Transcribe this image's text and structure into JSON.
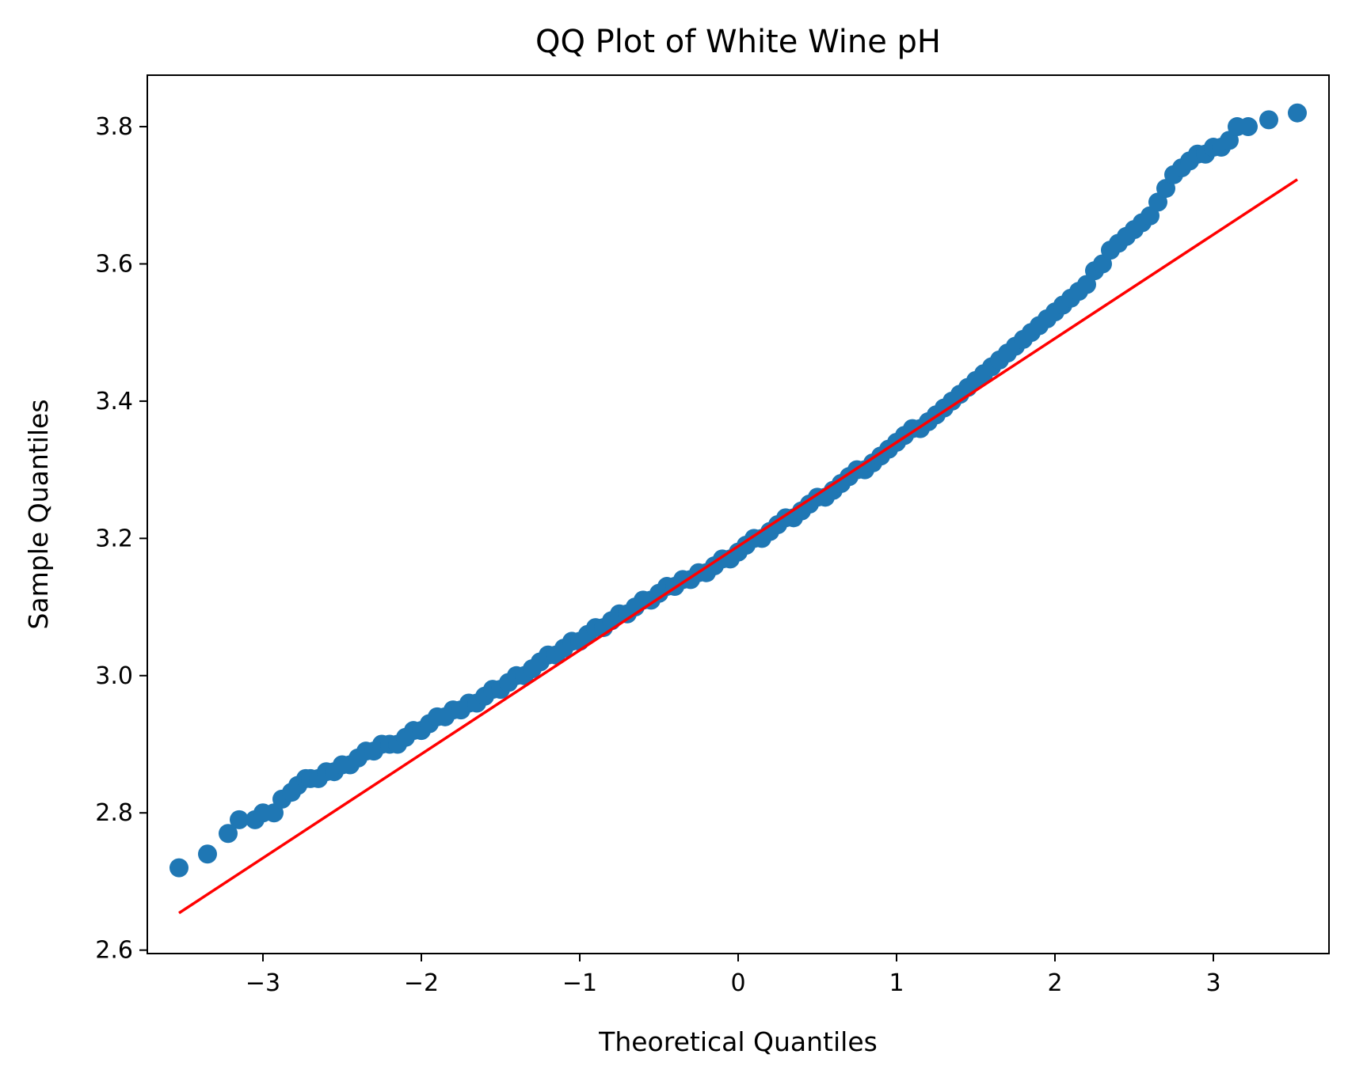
{
  "chart_data": {
    "type": "scatter",
    "title": "QQ Plot of White Wine pH",
    "xlabel": "Theoretical Quantiles",
    "ylabel": "Sample Quantiles",
    "xlim": [
      -3.73,
      3.73
    ],
    "ylim": [
      2.595,
      3.875
    ],
    "x_ticks": [
      -3,
      -2,
      -1,
      0,
      1,
      2,
      3
    ],
    "x_tick_labels": [
      "−3",
      "−2",
      "−1",
      "0",
      "1",
      "2",
      "3"
    ],
    "y_ticks": [
      2.6,
      2.8,
      3.0,
      3.2,
      3.4,
      3.6,
      3.8
    ],
    "y_tick_labels": [
      "2.6",
      "2.8",
      "3.0",
      "3.2",
      "3.4",
      "3.6",
      "3.8"
    ],
    "grid": false,
    "series": [
      {
        "kind": "points",
        "color": "#1f77b4",
        "x": [
          -3.53,
          -3.35,
          -3.22,
          -3.15,
          -3.05,
          -3.0,
          -2.93,
          -2.88,
          -2.82,
          -2.78,
          -2.73,
          -2.7,
          -2.65,
          -2.6,
          -2.55,
          -2.5,
          -2.45,
          -2.4,
          -2.35,
          -2.3,
          -2.25,
          -2.2,
          -2.15,
          -2.1,
          -2.05,
          -2.0,
          -1.95,
          -1.9,
          -1.85,
          -1.8,
          -1.75,
          -1.7,
          -1.65,
          -1.6,
          -1.55,
          -1.5,
          -1.45,
          -1.4,
          -1.35,
          -1.3,
          -1.25,
          -1.2,
          -1.15,
          -1.1,
          -1.05,
          -1.0,
          -0.95,
          -0.9,
          -0.85,
          -0.8,
          -0.75,
          -0.7,
          -0.65,
          -0.6,
          -0.55,
          -0.5,
          -0.45,
          -0.4,
          -0.35,
          -0.3,
          -0.25,
          -0.2,
          -0.15,
          -0.1,
          -0.05,
          0.0,
          0.05,
          0.1,
          0.15,
          0.2,
          0.25,
          0.3,
          0.35,
          0.4,
          0.45,
          0.5,
          0.55,
          0.6,
          0.65,
          0.7,
          0.75,
          0.8,
          0.85,
          0.9,
          0.95,
          1.0,
          1.05,
          1.1,
          1.15,
          1.2,
          1.25,
          1.3,
          1.35,
          1.4,
          1.45,
          1.5,
          1.55,
          1.6,
          1.65,
          1.7,
          1.75,
          1.8,
          1.85,
          1.9,
          1.95,
          2.0,
          2.05,
          2.1,
          2.15,
          2.2,
          2.25,
          2.3,
          2.35,
          2.4,
          2.45,
          2.5,
          2.55,
          2.6,
          2.65,
          2.7,
          2.75,
          2.8,
          2.85,
          2.9,
          2.95,
          3.0,
          3.05,
          3.1,
          3.15,
          3.22,
          3.35,
          3.53
        ],
        "y": [
          2.72,
          2.74,
          2.77,
          2.79,
          2.79,
          2.8,
          2.8,
          2.82,
          2.83,
          2.84,
          2.85,
          2.85,
          2.85,
          2.86,
          2.86,
          2.87,
          2.87,
          2.88,
          2.89,
          2.89,
          2.9,
          2.9,
          2.9,
          2.91,
          2.92,
          2.92,
          2.93,
          2.94,
          2.94,
          2.95,
          2.95,
          2.96,
          2.96,
          2.97,
          2.98,
          2.98,
          2.99,
          3.0,
          3.0,
          3.01,
          3.02,
          3.03,
          3.03,
          3.04,
          3.05,
          3.05,
          3.06,
          3.07,
          3.07,
          3.08,
          3.09,
          3.09,
          3.1,
          3.11,
          3.11,
          3.12,
          3.13,
          3.13,
          3.14,
          3.14,
          3.15,
          3.15,
          3.16,
          3.17,
          3.17,
          3.18,
          3.19,
          3.2,
          3.2,
          3.21,
          3.22,
          3.23,
          3.23,
          3.24,
          3.25,
          3.26,
          3.26,
          3.27,
          3.28,
          3.29,
          3.3,
          3.3,
          3.31,
          3.32,
          3.33,
          3.34,
          3.35,
          3.36,
          3.36,
          3.37,
          3.38,
          3.39,
          3.4,
          3.41,
          3.42,
          3.43,
          3.44,
          3.45,
          3.46,
          3.47,
          3.48,
          3.49,
          3.5,
          3.51,
          3.52,
          3.53,
          3.54,
          3.55,
          3.56,
          3.57,
          3.59,
          3.6,
          3.62,
          3.63,
          3.64,
          3.65,
          3.66,
          3.67,
          3.69,
          3.71,
          3.73,
          3.74,
          3.75,
          3.76,
          3.76,
          3.77,
          3.77,
          3.78,
          3.8,
          3.8,
          3.81,
          3.82
        ]
      },
      {
        "kind": "line",
        "color": "#ff0000",
        "x": [
          -3.53,
          3.53
        ],
        "y": [
          2.654,
          3.723
        ]
      }
    ]
  }
}
